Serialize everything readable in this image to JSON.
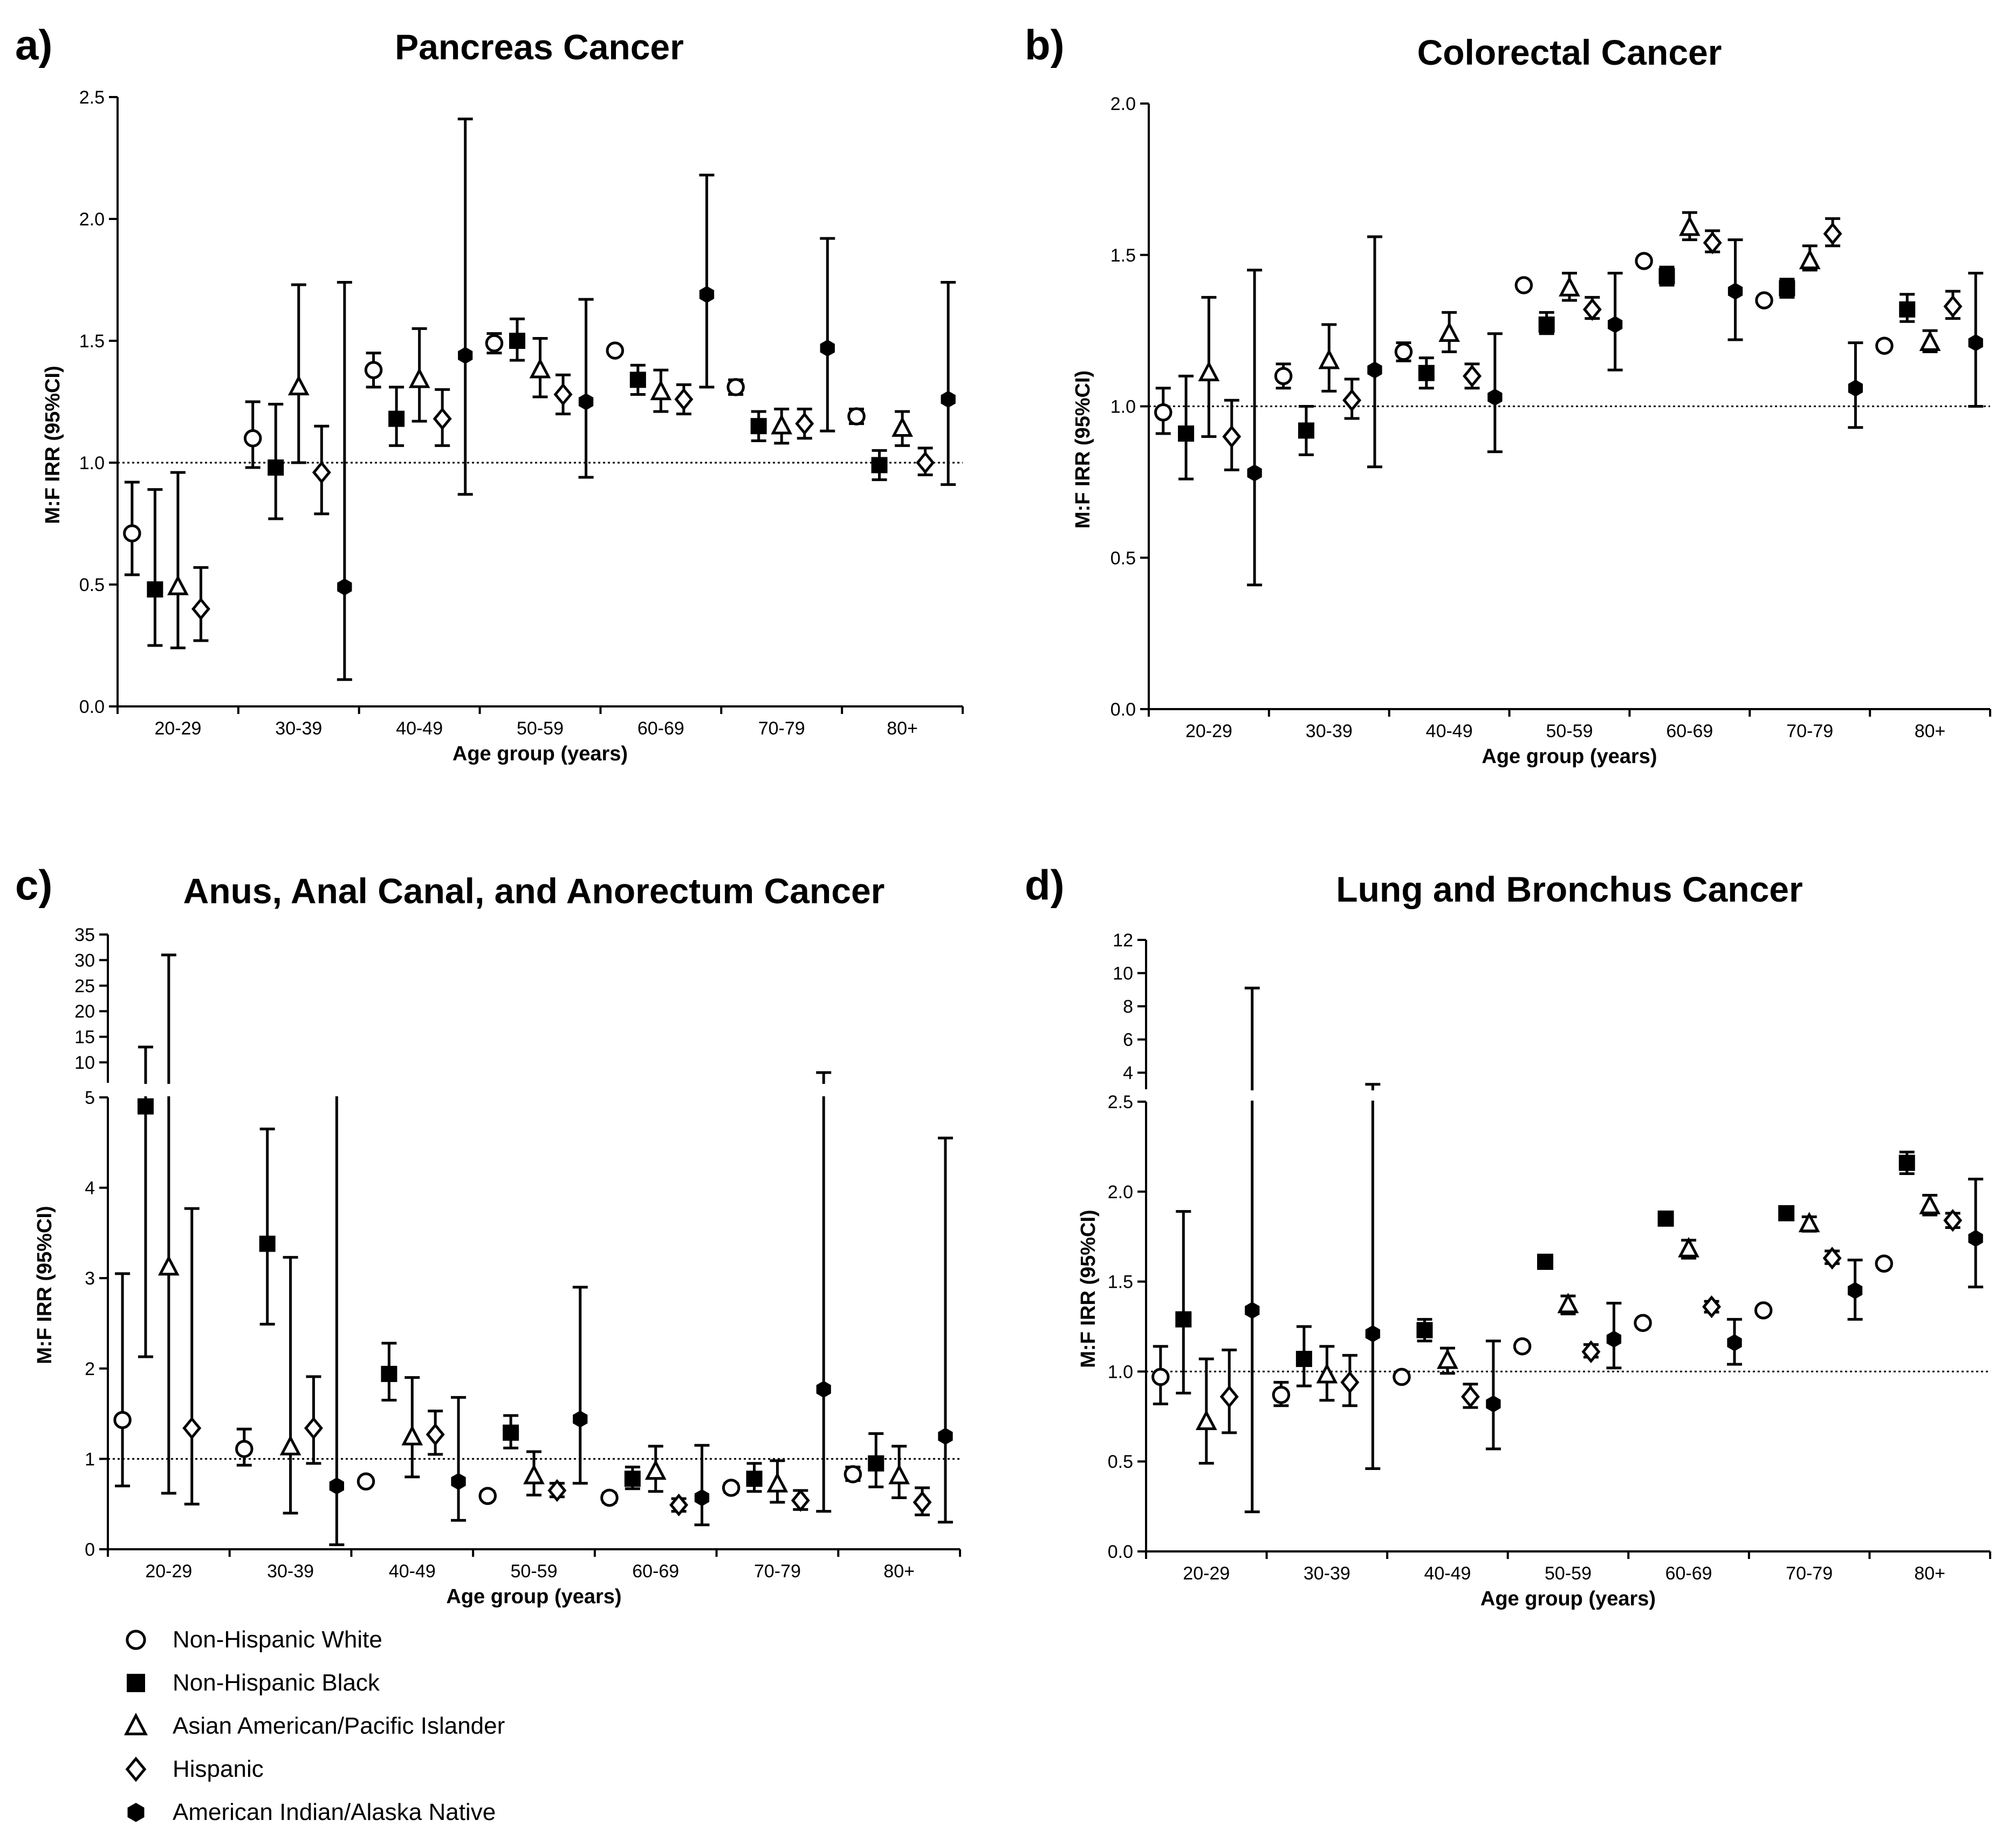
{
  "xlabel": "Age group (years)",
  "ylabel": "M:F IRR (95%CI)",
  "legend": [
    {
      "name": "Non-Hispanic White",
      "marker": "circle"
    },
    {
      "name": "Non-Hispanic Black",
      "marker": "square"
    },
    {
      "name": "Asian American/Pacific Islander",
      "marker": "triangle"
    },
    {
      "name": "Hispanic",
      "marker": "diamond"
    },
    {
      "name": "American Indian/Alaska Native",
      "marker": "hexagon"
    }
  ],
  "colors": {
    "markers": "#000000",
    "background": "#ffffff"
  },
  "chart_data": [
    {
      "panel": "a)",
      "title": "Pancreas Cancer",
      "type": "scatter",
      "categories": [
        "20-29",
        "30-39",
        "40-49",
        "50-59",
        "60-69",
        "70-79",
        "80+"
      ],
      "ylim": [
        0,
        2.5
      ],
      "yticks": [
        "0.0",
        "0.5",
        "1.0",
        "1.5",
        "2.0",
        "2.5"
      ],
      "reference_line": 1.0,
      "series": [
        {
          "name": "Non-Hispanic White",
          "values": [
            0.71,
            1.1,
            1.38,
            1.49,
            1.46,
            1.31,
            1.19
          ],
          "lower": [
            0.54,
            0.98,
            1.31,
            1.45,
            null,
            1.28,
            1.16
          ],
          "upper": [
            0.92,
            1.25,
            1.45,
            1.53,
            null,
            1.34,
            1.22
          ]
        },
        {
          "name": "Non-Hispanic Black",
          "values": [
            0.48,
            0.98,
            1.18,
            1.5,
            1.34,
            1.15,
            0.99
          ],
          "lower": [
            0.25,
            0.77,
            1.07,
            1.42,
            1.28,
            1.09,
            0.93
          ],
          "upper": [
            0.89,
            1.24,
            1.31,
            1.59,
            1.4,
            1.21,
            1.05
          ]
        },
        {
          "name": "Asian American/Pacific Islander",
          "values": [
            0.49,
            1.31,
            1.34,
            1.38,
            1.29,
            1.15,
            1.14
          ],
          "lower": [
            0.24,
            1.0,
            1.17,
            1.27,
            1.21,
            1.08,
            1.07
          ],
          "upper": [
            0.96,
            1.73,
            1.55,
            1.51,
            1.38,
            1.22,
            1.21
          ]
        },
        {
          "name": "Hispanic",
          "values": [
            0.4,
            0.96,
            1.18,
            1.28,
            1.26,
            1.16,
            1.0
          ],
          "lower": [
            0.27,
            0.79,
            1.07,
            1.2,
            1.2,
            1.1,
            0.95
          ],
          "upper": [
            0.57,
            1.15,
            1.3,
            1.36,
            1.32,
            1.22,
            1.06
          ]
        },
        {
          "name": "American Indian/Alaska Native",
          "values": [
            null,
            0.49,
            1.44,
            1.25,
            1.69,
            1.47,
            1.26
          ],
          "lower": [
            null,
            0.11,
            0.87,
            0.94,
            1.31,
            1.13,
            0.91
          ],
          "upper": [
            null,
            1.74,
            2.41,
            1.67,
            2.18,
            1.92,
            1.74
          ]
        }
      ]
    },
    {
      "panel": "b)",
      "title": "Colorectal Cancer",
      "type": "scatter",
      "categories": [
        "20-29",
        "30-39",
        "40-49",
        "50-59",
        "60-69",
        "70-79",
        "80+"
      ],
      "ylim": [
        0,
        2.0
      ],
      "yticks": [
        "0.0",
        "0.5",
        "1.0",
        "1.5",
        "2.0"
      ],
      "reference_line": 1.0,
      "series": [
        {
          "name": "Non-Hispanic White",
          "values": [
            0.98,
            1.1,
            1.18,
            1.4,
            1.48,
            1.35,
            1.2
          ],
          "lower": [
            0.91,
            1.06,
            1.15,
            null,
            1.47,
            1.34,
            1.19
          ],
          "upper": [
            1.06,
            1.14,
            1.21,
            null,
            1.49,
            1.36,
            1.21
          ]
        },
        {
          "name": "Non-Hispanic Black",
          "values": [
            0.91,
            0.92,
            1.11,
            1.27,
            1.43,
            1.39,
            1.32
          ],
          "lower": [
            0.76,
            0.84,
            1.06,
            1.24,
            1.4,
            1.36,
            1.28
          ],
          "upper": [
            1.1,
            1.0,
            1.16,
            1.31,
            1.46,
            1.42,
            1.37
          ]
        },
        {
          "name": "Asian American/Pacific Islander",
          "values": [
            1.11,
            1.15,
            1.24,
            1.39,
            1.59,
            1.48,
            1.21
          ],
          "lower": [
            0.9,
            1.05,
            1.18,
            1.35,
            1.55,
            1.45,
            1.18
          ],
          "upper": [
            1.36,
            1.27,
            1.31,
            1.44,
            1.64,
            1.53,
            1.25
          ]
        },
        {
          "name": "Hispanic",
          "values": [
            0.9,
            1.02,
            1.1,
            1.32,
            1.54,
            1.57,
            1.33
          ],
          "lower": [
            0.79,
            0.96,
            1.06,
            1.29,
            1.51,
            1.53,
            1.29
          ],
          "upper": [
            1.02,
            1.09,
            1.14,
            1.36,
            1.58,
            1.62,
            1.38
          ]
        },
        {
          "name": "American Indian/Alaska Native",
          "values": [
            0.78,
            1.12,
            1.03,
            1.27,
            1.38,
            1.06,
            1.21
          ],
          "lower": [
            0.41,
            0.8,
            0.85,
            1.12,
            1.22,
            0.93,
            1.0
          ],
          "upper": [
            1.45,
            1.56,
            1.24,
            1.44,
            1.55,
            1.21,
            1.44
          ]
        }
      ]
    },
    {
      "panel": "c)",
      "title": "Anus, Anal Canal, and Anorectum Cancer",
      "type": "scatter",
      "categories": [
        "20-29",
        "30-39",
        "40-49",
        "50-59",
        "60-69",
        "70-79",
        "80+"
      ],
      "ylim": [
        0,
        35
      ],
      "axis_break": [
        5,
        6
      ],
      "yticks_lower": [
        "0",
        "1",
        "2",
        "3",
        "4",
        "5"
      ],
      "yticks_upper": [
        "10",
        "15",
        "20",
        "25",
        "30",
        "35"
      ],
      "reference_line": 1.0,
      "series": [
        {
          "name": "Non-Hispanic White",
          "values": [
            1.43,
            1.11,
            0.75,
            0.59,
            0.57,
            0.68,
            0.83
          ],
          "lower": [
            0.7,
            0.93,
            null,
            0.55,
            0.52,
            0.63,
            0.76
          ],
          "upper": [
            3.05,
            1.33,
            null,
            0.64,
            0.62,
            0.73,
            0.91
          ]
        },
        {
          "name": "Non-Hispanic Black",
          "values": [
            4.9,
            3.38,
            1.94,
            1.29,
            0.78,
            0.78,
            0.95
          ],
          "lower": [
            2.13,
            2.49,
            1.65,
            1.12,
            0.67,
            0.64,
            0.69
          ],
          "upper": [
            13.0,
            4.65,
            2.28,
            1.48,
            0.91,
            0.95,
            1.28
          ]
        },
        {
          "name": "Asian American/Pacific Islander",
          "values": [
            3.12,
            1.13,
            1.24,
            0.81,
            0.86,
            0.72,
            0.81
          ],
          "lower": [
            0.62,
            0.4,
            0.8,
            0.6,
            0.64,
            0.52,
            0.57
          ],
          "upper": [
            31.0,
            3.23,
            1.9,
            1.08,
            1.14,
            0.98,
            1.14
          ]
        },
        {
          "name": "Hispanic",
          "values": [
            1.34,
            1.34,
            1.27,
            0.65,
            0.49,
            0.54,
            0.52
          ],
          "lower": [
            0.5,
            0.95,
            1.05,
            0.58,
            0.42,
            0.44,
            0.38
          ],
          "upper": [
            3.77,
            1.91,
            1.53,
            0.73,
            0.56,
            0.65,
            0.68
          ]
        },
        {
          "name": "American Indian/Alaska Native",
          "values": [
            null,
            0.7,
            0.75,
            1.44,
            0.57,
            1.77,
            1.25
          ],
          "lower": [
            null,
            0.05,
            0.32,
            0.73,
            0.27,
            0.42,
            0.3
          ],
          "upper": [
            null,
            5.6,
            1.68,
            2.9,
            1.15,
            8.0,
            4.55
          ]
        }
      ]
    },
    {
      "panel": "d)",
      "title": "Lung and Bronchus Cancer",
      "type": "scatter",
      "categories": [
        "20-29",
        "30-39",
        "40-49",
        "50-59",
        "60-69",
        "70-79",
        "80+"
      ],
      "ylim": [
        0,
        12
      ],
      "axis_break": [
        2.5,
        3
      ],
      "yticks_lower": [
        "0.0",
        "0.5",
        "1.0",
        "1.5",
        "2.0",
        "2.5"
      ],
      "yticks_upper": [
        "4",
        "6",
        "8",
        "10",
        "12"
      ],
      "reference_line": 1.0,
      "series": [
        {
          "name": "Non-Hispanic White",
          "values": [
            0.97,
            0.87,
            0.97,
            1.14,
            1.27,
            1.34,
            1.6
          ],
          "lower": [
            0.82,
            0.81,
            null,
            1.12,
            1.26,
            1.33,
            1.59
          ],
          "upper": [
            1.14,
            0.94,
            null,
            1.16,
            1.28,
            1.35,
            1.61
          ]
        },
        {
          "name": "Non-Hispanic Black",
          "values": [
            1.29,
            1.07,
            1.23,
            1.61,
            1.85,
            1.88,
            2.16
          ],
          "lower": [
            0.88,
            0.92,
            1.17,
            1.58,
            1.83,
            1.85,
            2.1
          ],
          "upper": [
            1.89,
            1.25,
            1.29,
            1.64,
            1.88,
            1.91,
            2.22
          ]
        },
        {
          "name": "Asian American/Pacific Islander",
          "values": [
            0.72,
            0.98,
            1.06,
            1.37,
            1.68,
            1.82,
            1.92
          ],
          "lower": [
            0.49,
            0.84,
            0.99,
            1.32,
            1.63,
            1.78,
            1.87
          ],
          "upper": [
            1.07,
            1.14,
            1.13,
            1.42,
            1.73,
            1.86,
            1.98
          ]
        },
        {
          "name": "Hispanic",
          "values": [
            0.86,
            0.94,
            0.86,
            1.11,
            1.36,
            1.63,
            1.84
          ],
          "lower": [
            0.66,
            0.81,
            0.8,
            1.08,
            1.33,
            1.6,
            1.8
          ],
          "upper": [
            1.12,
            1.09,
            0.93,
            1.15,
            1.39,
            1.67,
            1.88
          ]
        },
        {
          "name": "American Indian/Alaska Native",
          "values": [
            1.34,
            1.21,
            0.82,
            1.18,
            1.16,
            1.45,
            1.74
          ],
          "lower": [
            0.22,
            0.46,
            0.57,
            1.02,
            1.04,
            1.29,
            1.47
          ],
          "upper": [
            9.1,
            3.3,
            1.17,
            1.38,
            1.29,
            1.62,
            2.07
          ]
        }
      ]
    }
  ]
}
